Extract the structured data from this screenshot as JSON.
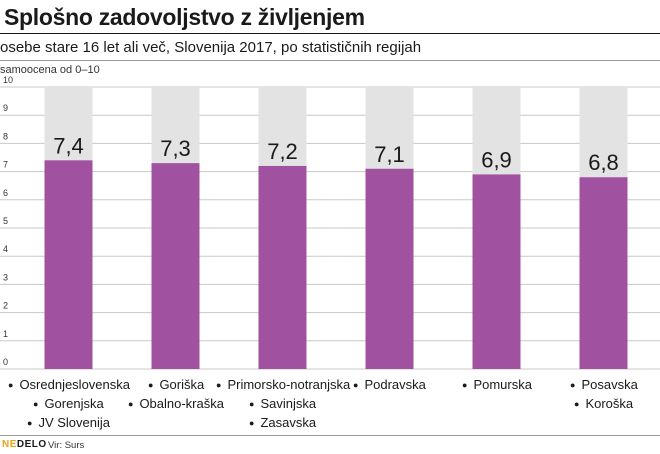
{
  "header": {
    "title": "Splošno zadovoljstvo z življenjem",
    "subtitle": "osebe stare 16 let ali več, Slovenija 2017, po statističnih regijah",
    "unit_label": "samoocena od 0–10"
  },
  "chart_data": {
    "type": "bar",
    "title": "Splošno zadovoljstvo z življenjem",
    "subtitle": "osebe stare 16 let ali več, Slovenija 2017, po statističnih regijah",
    "ylabel": "samoocena od 0–10",
    "ylim": [
      0,
      10
    ],
    "yticks": [
      "0",
      "1",
      "2",
      "3",
      "4",
      "5",
      "6",
      "7",
      "8",
      "9",
      "10"
    ],
    "grid": true,
    "categories": [
      [
        "Osrednjeslovenska",
        "Gorenjska",
        "JV Slovenija"
      ],
      [
        "Goriška",
        "Obalno-kraška"
      ],
      [
        "Primorsko-notranjska",
        "Savinjska",
        "Zasavska"
      ],
      [
        "Podravska"
      ],
      [
        "Pomurska"
      ],
      [
        "Posavska",
        "Koroška"
      ]
    ],
    "values": [
      7.4,
      7.3,
      7.2,
      7.1,
      6.9,
      6.8
    ],
    "value_labels": [
      "7,4",
      "7,3",
      "7,2",
      "7,1",
      "6,9",
      "6,8"
    ],
    "max": 10
  },
  "colors": {
    "bar": "#a052a0",
    "background_bar": "#e3e3e3",
    "grid": "#c8c8c8",
    "logo_accent": "#e8a317"
  },
  "footer": {
    "logo_part1": "NE",
    "logo_part2": "DELO",
    "source": "Vir: Surs"
  }
}
